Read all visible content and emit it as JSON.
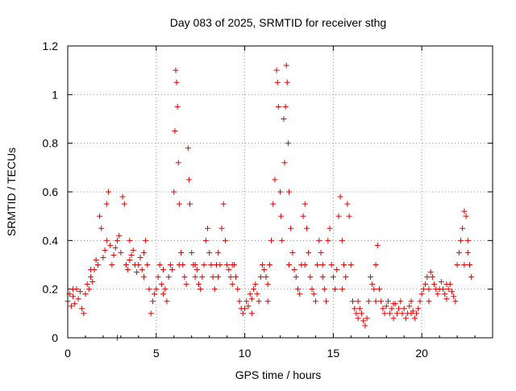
{
  "chart_data": {
    "type": "scatter",
    "title": "Day 083 of 2025, SRMTID for receiver sthg",
    "xlabel": "GPS time / hours",
    "ylabel": "SRMTID / TECUs",
    "xlim": [
      0,
      24
    ],
    "ylim": [
      0,
      1.2
    ],
    "xticks": [
      0,
      5,
      10,
      15,
      20
    ],
    "yticks": [
      0,
      0.2,
      0.4,
      0.6,
      0.8,
      1,
      1.2
    ],
    "xtick_labels": [
      "0",
      "5",
      "10",
      "15",
      "20"
    ],
    "ytick_labels": [
      "0",
      "0.2",
      "0.4",
      "0.6",
      "0.8",
      "1",
      "1.2"
    ],
    "grid": true,
    "marker": "plus",
    "series": [
      {
        "name": "SRMTID",
        "color": "#e00000",
        "points": [
          [
            0.0,
            0.15
          ],
          [
            0.1,
            0.18
          ],
          [
            0.2,
            0.13
          ],
          [
            0.3,
            0.17
          ],
          [
            0.4,
            0.14
          ],
          [
            0.5,
            0.2
          ],
          [
            0.6,
            0.16
          ],
          [
            0.7,
            0.19
          ],
          [
            0.8,
            0.12
          ],
          [
            0.9,
            0.1
          ],
          [
            1.0,
            0.18
          ],
          [
            1.1,
            0.22
          ],
          [
            1.2,
            0.2
          ],
          [
            1.3,
            0.25
          ],
          [
            1.4,
            0.23
          ],
          [
            1.5,
            0.28
          ],
          [
            1.6,
            0.32
          ],
          [
            1.7,
            0.3
          ],
          [
            1.8,
            0.5
          ],
          [
            1.9,
            0.45
          ],
          [
            2.0,
            0.33
          ],
          [
            2.1,
            0.36
          ],
          [
            2.2,
            0.55
          ],
          [
            2.3,
            0.6
          ],
          [
            2.4,
            0.38
          ],
          [
            2.5,
            0.3
          ],
          [
            2.6,
            0.34
          ],
          [
            2.7,
            0.37
          ],
          [
            2.8,
            0.4
          ],
          [
            2.9,
            0.42
          ],
          [
            3.0,
            0.35
          ],
          [
            3.1,
            0.58
          ],
          [
            3.2,
            0.55
          ],
          [
            3.3,
            0.3
          ],
          [
            3.4,
            0.28
          ],
          [
            3.5,
            0.32
          ],
          [
            3.6,
            0.34
          ],
          [
            3.7,
            0.36
          ],
          [
            3.8,
            0.3
          ],
          [
            3.9,
            0.27
          ],
          [
            4.0,
            0.3
          ],
          [
            4.1,
            0.33
          ],
          [
            4.2,
            0.28
          ],
          [
            4.3,
            0.35
          ],
          [
            4.4,
            0.4
          ],
          [
            4.5,
            0.3
          ],
          [
            4.6,
            0.2
          ],
          [
            4.7,
            0.1
          ],
          [
            4.8,
            0.15
          ],
          [
            4.9,
            0.18
          ],
          [
            5.0,
            0.2
          ],
          [
            5.1,
            0.25
          ],
          [
            5.2,
            0.3
          ],
          [
            5.3,
            0.22
          ],
          [
            5.4,
            0.18
          ],
          [
            5.5,
            0.2
          ],
          [
            5.6,
            0.15
          ],
          [
            5.7,
            0.25
          ],
          [
            5.8,
            0.3
          ],
          [
            5.9,
            0.28
          ],
          [
            6.0,
            0.6
          ],
          [
            6.05,
            0.85
          ],
          [
            6.1,
            1.1
          ],
          [
            6.15,
            1.05
          ],
          [
            6.2,
            0.95
          ],
          [
            6.25,
            0.72
          ],
          [
            6.3,
            0.55
          ],
          [
            6.4,
            0.35
          ],
          [
            6.5,
            0.3
          ],
          [
            6.6,
            0.25
          ],
          [
            6.7,
            0.22
          ],
          [
            6.8,
            0.78
          ],
          [
            6.85,
            0.65
          ],
          [
            6.9,
            0.55
          ],
          [
            7.0,
            0.35
          ],
          [
            7.1,
            0.3
          ],
          [
            7.2,
            0.25
          ],
          [
            7.3,
            0.28
          ],
          [
            7.4,
            0.22
          ],
          [
            7.5,
            0.2
          ],
          [
            7.6,
            0.25
          ],
          [
            7.7,
            0.3
          ],
          [
            7.8,
            0.4
          ],
          [
            7.9,
            0.45
          ],
          [
            8.0,
            0.35
          ],
          [
            8.1,
            0.3
          ],
          [
            8.2,
            0.25
          ],
          [
            8.3,
            0.2
          ],
          [
            8.4,
            0.3
          ],
          [
            8.5,
            0.25
          ],
          [
            8.6,
            0.3
          ],
          [
            8.7,
            0.45
          ],
          [
            8.8,
            0.55
          ],
          [
            8.9,
            0.4
          ],
          [
            9.0,
            0.3
          ],
          [
            9.1,
            0.28
          ],
          [
            9.2,
            0.25
          ],
          [
            9.3,
            0.22
          ],
          [
            9.4,
            0.3
          ],
          [
            9.5,
            0.25
          ],
          [
            9.6,
            0.2
          ],
          [
            9.7,
            0.15
          ],
          [
            9.8,
            0.12
          ],
          [
            9.9,
            0.1
          ],
          [
            10.0,
            0.12
          ],
          [
            10.1,
            0.15
          ],
          [
            10.2,
            0.13
          ],
          [
            10.3,
            0.18
          ],
          [
            10.4,
            0.16
          ],
          [
            10.5,
            0.2
          ],
          [
            10.6,
            0.22
          ],
          [
            10.7,
            0.18
          ],
          [
            10.8,
            0.15
          ],
          [
            10.9,
            0.25
          ],
          [
            11.0,
            0.3
          ],
          [
            11.1,
            0.28
          ],
          [
            11.2,
            0.25
          ],
          [
            11.3,
            0.22
          ],
          [
            11.4,
            0.3
          ],
          [
            11.5,
            0.4
          ],
          [
            11.6,
            0.55
          ],
          [
            11.7,
            0.65
          ],
          [
            11.8,
            1.1
          ],
          [
            11.85,
            1.05
          ],
          [
            11.9,
            0.95
          ],
          [
            12.0,
            0.6
          ],
          [
            12.05,
            0.5
          ],
          [
            12.1,
            0.4
          ],
          [
            12.2,
            0.9
          ],
          [
            12.25,
            0.72
          ],
          [
            12.3,
            0.95
          ],
          [
            12.35,
            1.12
          ],
          [
            12.4,
            1.05
          ],
          [
            12.45,
            0.8
          ],
          [
            12.5,
            0.6
          ],
          [
            12.6,
            0.45
          ],
          [
            12.7,
            0.35
          ],
          [
            12.8,
            0.28
          ],
          [
            12.9,
            0.25
          ],
          [
            13.0,
            0.2
          ],
          [
            13.1,
            0.18
          ],
          [
            13.2,
            0.3
          ],
          [
            13.3,
            0.5
          ],
          [
            13.4,
            0.55
          ],
          [
            13.5,
            0.45
          ],
          [
            13.6,
            0.35
          ],
          [
            13.7,
            0.25
          ],
          [
            13.8,
            0.2
          ],
          [
            13.9,
            0.18
          ],
          [
            14.0,
            0.15
          ],
          [
            14.1,
            0.3
          ],
          [
            14.2,
            0.4
          ],
          [
            14.3,
            0.35
          ],
          [
            14.4,
            0.25
          ],
          [
            14.5,
            0.2
          ],
          [
            14.6,
            0.15
          ],
          [
            14.7,
            0.4
          ],
          [
            14.8,
            0.45
          ],
          [
            14.9,
            0.3
          ],
          [
            15.0,
            0.25
          ],
          [
            15.1,
            0.2
          ],
          [
            15.2,
            0.28
          ],
          [
            15.3,
            0.5
          ],
          [
            15.4,
            0.58
          ],
          [
            15.5,
            0.4
          ],
          [
            15.6,
            0.3
          ],
          [
            15.7,
            0.25
          ],
          [
            15.8,
            0.55
          ],
          [
            15.9,
            0.5
          ],
          [
            16.0,
            0.3
          ],
          [
            16.1,
            0.15
          ],
          [
            16.2,
            0.12
          ],
          [
            16.3,
            0.1
          ],
          [
            16.4,
            0.08
          ],
          [
            16.5,
            0.12
          ],
          [
            16.6,
            0.1
          ],
          [
            16.7,
            0.07
          ],
          [
            16.8,
            0.05
          ],
          [
            16.9,
            0.08
          ],
          [
            17.0,
            0.15
          ],
          [
            17.1,
            0.25
          ],
          [
            17.2,
            0.22
          ],
          [
            17.3,
            0.2
          ],
          [
            17.4,
            0.3
          ],
          [
            17.5,
            0.38
          ],
          [
            17.6,
            0.2
          ],
          [
            17.7,
            0.15
          ],
          [
            17.8,
            0.12
          ],
          [
            17.9,
            0.1
          ],
          [
            18.0,
            0.13
          ],
          [
            18.1,
            0.15
          ],
          [
            18.2,
            0.1
          ],
          [
            18.3,
            0.12
          ],
          [
            18.4,
            0.08
          ],
          [
            18.5,
            0.14
          ],
          [
            18.6,
            0.1
          ],
          [
            18.7,
            0.12
          ],
          [
            18.8,
            0.15
          ],
          [
            18.9,
            0.1
          ],
          [
            19.0,
            0.12
          ],
          [
            19.1,
            0.08
          ],
          [
            19.2,
            0.1
          ],
          [
            19.3,
            0.13
          ],
          [
            19.4,
            0.15
          ],
          [
            19.5,
            0.11
          ],
          [
            19.6,
            0.08
          ],
          [
            19.7,
            0.1
          ],
          [
            19.8,
            0.12
          ],
          [
            19.9,
            0.15
          ],
          [
            20.0,
            0.18
          ],
          [
            20.1,
            0.2
          ],
          [
            20.2,
            0.22
          ],
          [
            20.3,
            0.25
          ],
          [
            20.4,
            0.2
          ],
          [
            20.5,
            0.27
          ],
          [
            20.6,
            0.25
          ],
          [
            20.7,
            0.22
          ],
          [
            20.8,
            0.2
          ],
          [
            20.9,
            0.18
          ],
          [
            21.0,
            0.2
          ],
          [
            21.1,
            0.23
          ],
          [
            21.2,
            0.2
          ],
          [
            21.3,
            0.18
          ],
          [
            21.4,
            0.16
          ],
          [
            21.5,
            0.2
          ],
          [
            21.6,
            0.22
          ],
          [
            21.7,
            0.19
          ],
          [
            21.8,
            0.17
          ],
          [
            21.9,
            0.15
          ],
          [
            22.0,
            0.3
          ],
          [
            22.1,
            0.35
          ],
          [
            22.2,
            0.4
          ],
          [
            22.3,
            0.45
          ],
          [
            22.4,
            0.52
          ],
          [
            22.5,
            0.5
          ],
          [
            22.6,
            0.35
          ],
          [
            22.7,
            0.3
          ],
          [
            22.8,
            0.25
          ],
          [
            22.4,
            0.3
          ],
          [
            22.6,
            0.4
          ],
          [
            0.3,
            0.2
          ],
          [
            1.3,
            0.28
          ],
          [
            2.2,
            0.4
          ],
          [
            3.5,
            0.4
          ],
          [
            4.3,
            0.25
          ],
          [
            5.4,
            0.28
          ],
          [
            6.3,
            0.3
          ],
          [
            7.2,
            0.3
          ],
          [
            8.5,
            0.35
          ],
          [
            9.3,
            0.3
          ],
          [
            10.4,
            0.1
          ],
          [
            11.3,
            0.15
          ],
          [
            12.5,
            0.3
          ],
          [
            13.4,
            0.3
          ],
          [
            14.4,
            0.3
          ],
          [
            15.5,
            0.2
          ],
          [
            16.4,
            0.15
          ],
          [
            17.4,
            0.15
          ],
          [
            18.4,
            0.14
          ],
          [
            19.4,
            0.1
          ],
          [
            20.4,
            0.15
          ],
          [
            21.4,
            0.22
          ],
          [
            2.8,
            0.0
          ]
        ]
      }
    ]
  }
}
